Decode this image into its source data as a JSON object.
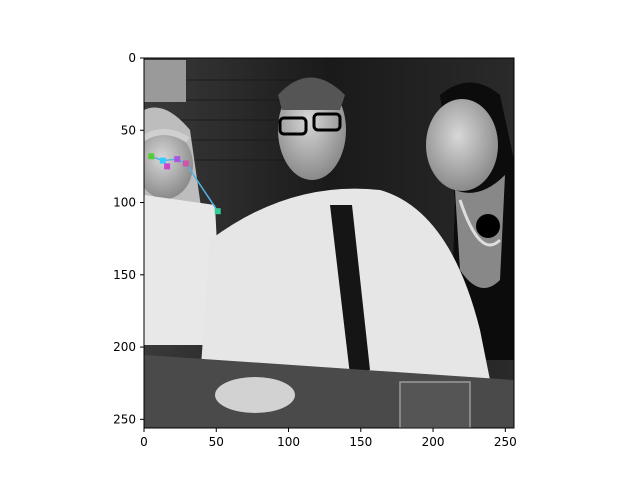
{
  "chart_data": {
    "type": "scatter",
    "title": "",
    "xlabel": "",
    "ylabel": "",
    "xlim": [
      0,
      256
    ],
    "ylim": [
      256,
      0
    ],
    "y_inverted": true,
    "grid": false,
    "image": {
      "extent": [
        0,
        256,
        256,
        0
      ],
      "colormap": "gray",
      "content": "grayscale photo of three people at a bar table"
    },
    "xticks": [
      0,
      50,
      100,
      150,
      200,
      250
    ],
    "yticks": [
      0,
      50,
      100,
      150,
      200,
      250
    ],
    "keypoints": [
      {
        "x": 5,
        "y": 68,
        "color": "#55cc33"
      },
      {
        "x": 13,
        "y": 71,
        "color": "#33ccff"
      },
      {
        "x": 16,
        "y": 75,
        "color": "#cc44cc"
      },
      {
        "x": 23,
        "y": 70,
        "color": "#aa55dd"
      },
      {
        "x": 29,
        "y": 73,
        "color": "#cc55aa"
      },
      {
        "x": 51,
        "y": 106,
        "color": "#33cc99"
      }
    ],
    "skeleton_color": "#4fb3e8",
    "skeleton": [
      [
        0,
        1
      ],
      [
        1,
        2
      ],
      [
        1,
        3
      ],
      [
        3,
        4
      ],
      [
        4,
        5
      ]
    ]
  }
}
